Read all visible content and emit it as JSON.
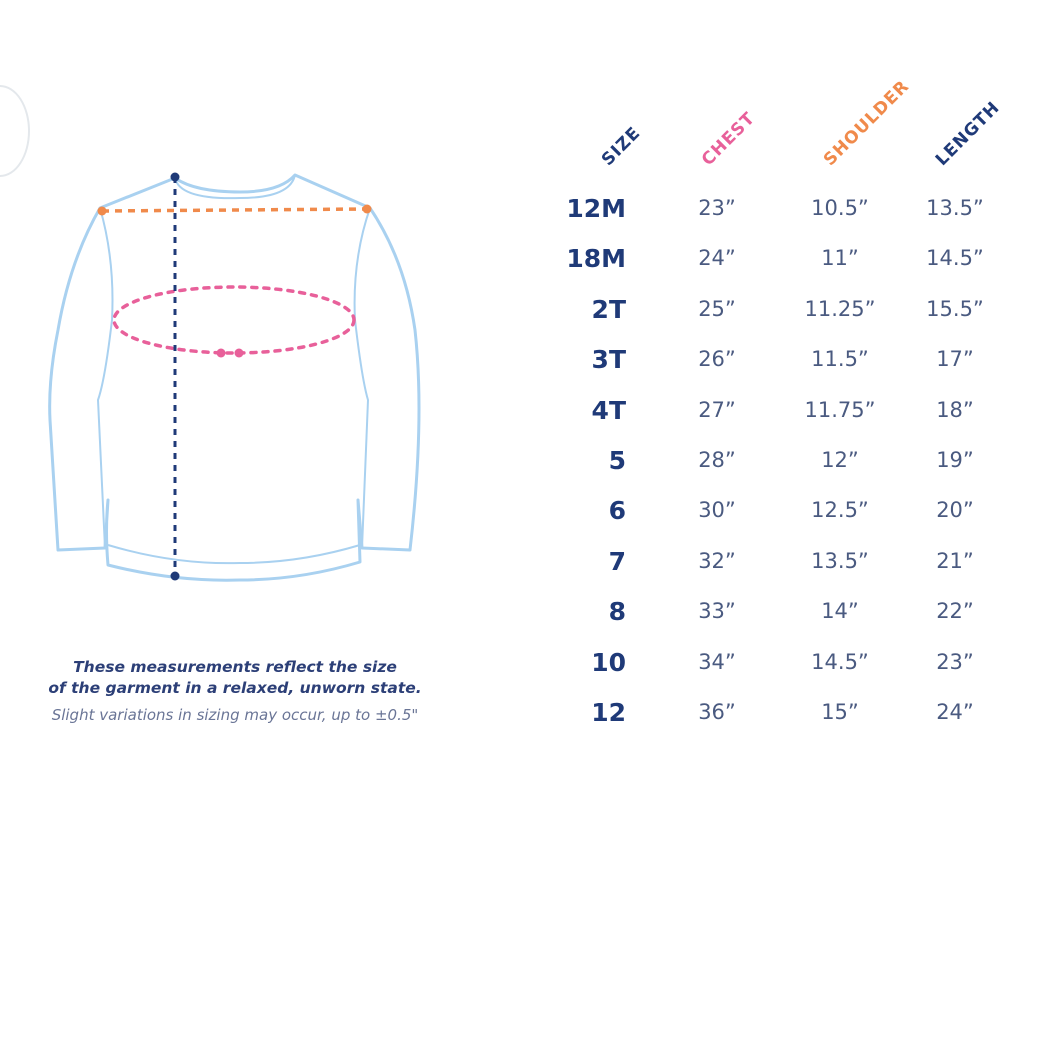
{
  "headers": {
    "size": "SIZE",
    "chest": "CHEST",
    "shoulder": "SHOULDER",
    "length": "LENGTH"
  },
  "colors": {
    "size": "#1f3a78",
    "chest": "#e8609a",
    "shoulder": "#f08a4b",
    "length": "#1f3a78",
    "shirt_outline": "#a9d1f0"
  },
  "rows": [
    {
      "size": "12M",
      "chest": "23”",
      "shoulder": "10.5”",
      "length": "13.5”"
    },
    {
      "size": "18M",
      "chest": "24”",
      "shoulder": "11”",
      "length": "14.5”"
    },
    {
      "size": "2T",
      "chest": "25”",
      "shoulder": "11.25”",
      "length": "15.5”"
    },
    {
      "size": "3T",
      "chest": "26”",
      "shoulder": "11.5”",
      "length": "17”"
    },
    {
      "size": "4T",
      "chest": "27”",
      "shoulder": "11.75”",
      "length": "18”"
    },
    {
      "size": "5",
      "chest": "28”",
      "shoulder": "12”",
      "length": "19”"
    },
    {
      "size": "6",
      "chest": "30”",
      "shoulder": "12.5”",
      "length": "20”"
    },
    {
      "size": "7",
      "chest": "32”",
      "shoulder": "13.5”",
      "length": "21”"
    },
    {
      "size": "8",
      "chest": "33”",
      "shoulder": "14”",
      "length": "22”"
    },
    {
      "size": "10",
      "chest": "34”",
      "shoulder": "14.5”",
      "length": "23”"
    },
    {
      "size": "12",
      "chest": "36”",
      "shoulder": "15”",
      "length": "24”"
    }
  ],
  "notes": {
    "line1": "These measurements reflect the size",
    "line2": "of the garment in a relaxed, unworn state.",
    "line3": "Slight variations in sizing may occur, up to ±0.5\""
  }
}
